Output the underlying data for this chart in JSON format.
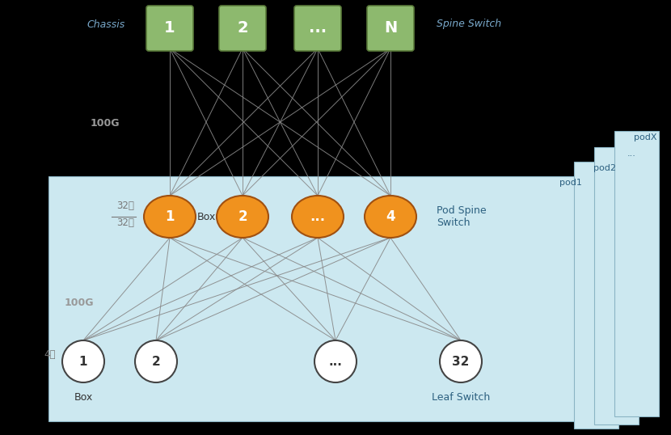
{
  "bg_color": "#000000",
  "pod_bg_color": "#cce8f0",
  "pod_border_color": "#8ab4c4",
  "spine_box_color": "#8db96e",
  "spine_box_edge_color": "#5a7a3a",
  "spine_labels": [
    "1",
    "2",
    "...",
    "N"
  ],
  "pod_spine_color": "#f0921e",
  "pod_spine_edge_color": "#a05010",
  "pod_spine_labels": [
    "1",
    "2",
    "...",
    "4"
  ],
  "leaf_color": "#ffffff",
  "leaf_edge_color": "#444444",
  "leaf_labels": [
    "1",
    "2",
    "...",
    "32"
  ],
  "link_color": "#888888",
  "chassis_label": "Chassis",
  "spine_switch_label": "Spine Switch",
  "pod_spine_label": "Pod Spine\nSwitch",
  "box_label": "Box",
  "leaf_switch_label": "Leaf Switch",
  "uplink_label_top": "100G",
  "uplink_label_mid": "100G",
  "port_label_up": "32上",
  "port_label_down": "32下",
  "port_label_leaf": "4上",
  "pod_label_1": "pod1",
  "pod_label_2": "pod2",
  "pod_label_3": "...",
  "pod_label_4": "podX"
}
